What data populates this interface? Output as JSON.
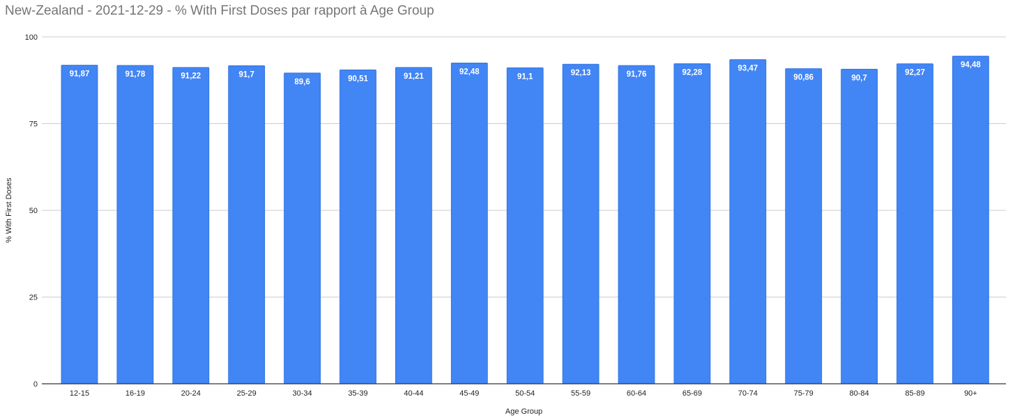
{
  "chart_data": {
    "type": "bar",
    "title": "New-Zealand - 2021-12-29 - % With First Doses par rapport à Age Group",
    "xlabel": "Age Group",
    "ylabel": "% With First Doses",
    "ylim": [
      0,
      100
    ],
    "yticks": [
      0,
      25,
      50,
      75,
      100
    ],
    "grid": true,
    "legend": "none",
    "bar_color": "#4285f4",
    "categories": [
      "12-15",
      "16-19",
      "20-24",
      "25-29",
      "30-34",
      "35-39",
      "40-44",
      "45-49",
      "50-54",
      "55-59",
      "60-64",
      "65-69",
      "70-74",
      "75-79",
      "80-84",
      "85-89",
      "90+"
    ],
    "values": [
      91.87,
      91.78,
      91.22,
      91.7,
      89.6,
      90.51,
      91.21,
      92.48,
      91.1,
      92.13,
      91.76,
      92.28,
      93.47,
      90.86,
      90.7,
      92.27,
      94.48
    ],
    "data_labels": [
      "91,87",
      "91,78",
      "91,22",
      "91,7",
      "89,6",
      "90,51",
      "91,21",
      "92,48",
      "91,1",
      "92,13",
      "91,76",
      "92,28",
      "93,47",
      "90,86",
      "90,7",
      "92,27",
      "94,48"
    ]
  }
}
